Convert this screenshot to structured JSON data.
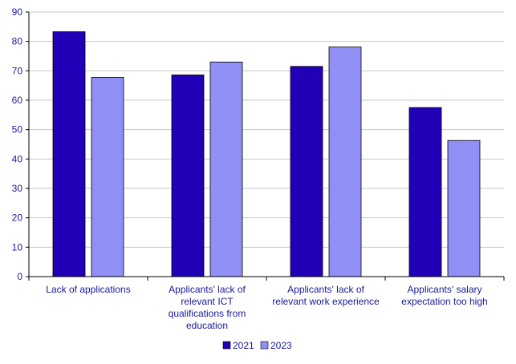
{
  "chart_data": {
    "type": "bar",
    "categories": [
      "Lack of applications",
      "Applicants' lack of relevant ICT qualifications from education",
      "Applicants' lack of relevant work experience",
      "Applicants' salary expectation too high"
    ],
    "category_label_lines": [
      [
        "Lack of applications"
      ],
      [
        "Applicants' lack of",
        "relevant ICT",
        "qualifications from",
        "education"
      ],
      [
        "Applicants' lack of",
        "relevant work experience"
      ],
      [
        "Applicants' salary",
        "expectation too high"
      ]
    ],
    "series": [
      {
        "name": "2021",
        "values": [
          83.3,
          68.6,
          71.5,
          57.5
        ]
      },
      {
        "name": "2023",
        "values": [
          67.8,
          73.0,
          78.1,
          46.3
        ]
      }
    ],
    "ylim": [
      0,
      90
    ],
    "yticks": [
      0,
      10,
      20,
      30,
      40,
      50,
      60,
      70,
      80,
      90
    ],
    "grid": true,
    "legend_position": "bottom-center",
    "colors": {
      "series": [
        "#2200b8",
        "#8f8ff5"
      ],
      "bar_edge": "#000000",
      "grid": "#c8c8c8",
      "axis": "#000000",
      "text": "#1a1a99"
    }
  }
}
